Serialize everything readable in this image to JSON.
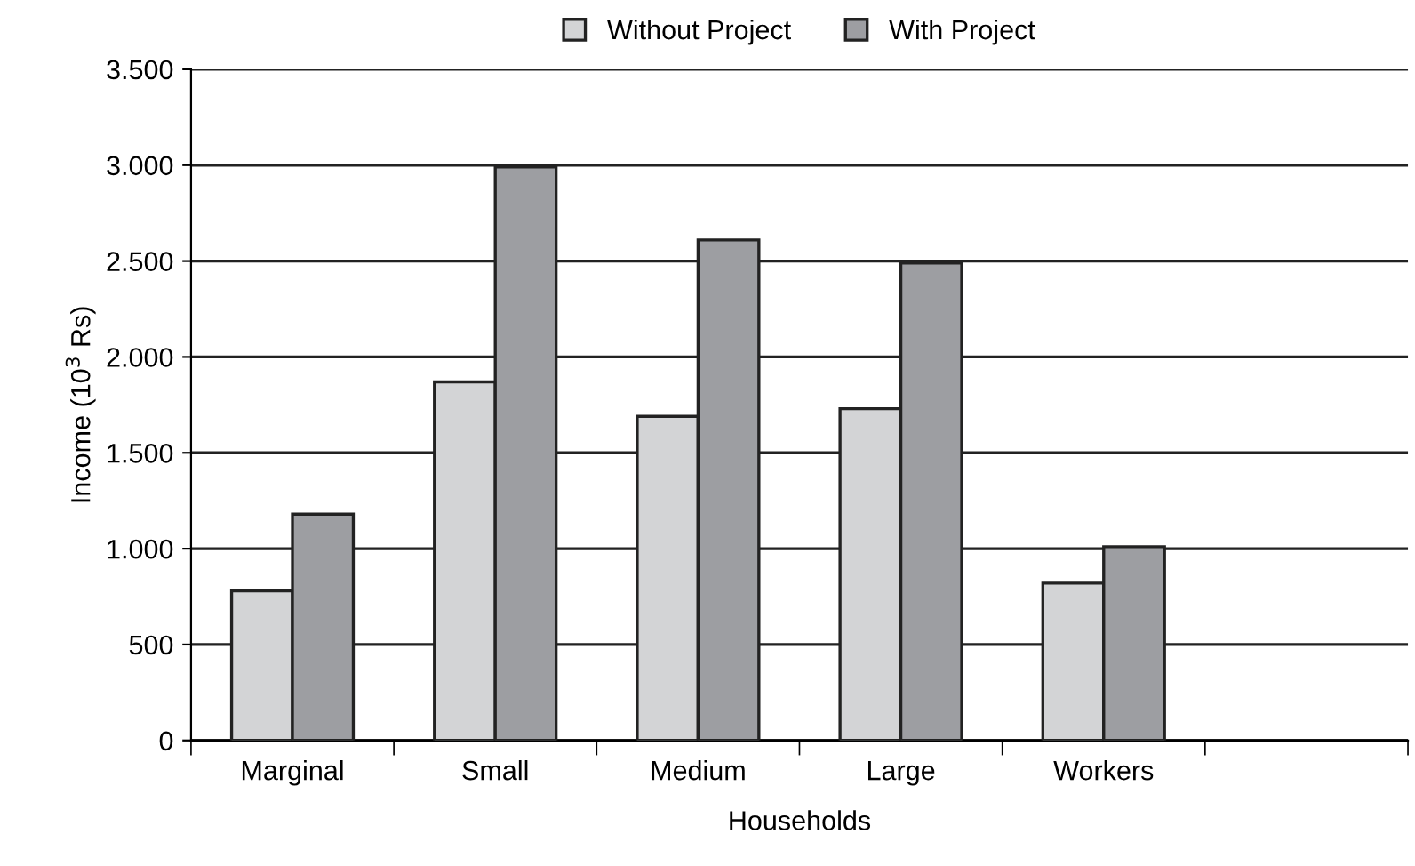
{
  "chart_data": {
    "type": "bar",
    "xlabel": "Households",
    "ylabel": "Income (10$^{3}$ Rs)",
    "categories": [
      "Marginal",
      "Small",
      "Medium",
      "Large",
      "Workers",
      null
    ],
    "series": [
      {
        "name": "Without Project",
        "color": "#d3d4d6",
        "values": [
          780,
          1870,
          1690,
          1730,
          820,
          null
        ]
      },
      {
        "name": "With Project",
        "color": "#9d9ea2",
        "values": [
          1180,
          2990,
          2610,
          2490,
          1010,
          null
        ]
      }
    ],
    "ylim": [
      0,
      3500
    ],
    "yticks": [
      0,
      {
        "value": 500,
        "label": "500"
      },
      {
        "value": 1000,
        "label": "1.000"
      },
      {
        "value": 1500,
        "label": "1.500"
      },
      {
        "value": 2000,
        "label": "2.000"
      },
      {
        "value": 2500,
        "label": "2.500"
      },
      {
        "value": 3000,
        "label": "3.000"
      },
      {
        "value": 3500,
        "label": "3.500"
      }
    ],
    "grid": "y",
    "legend": "top"
  }
}
